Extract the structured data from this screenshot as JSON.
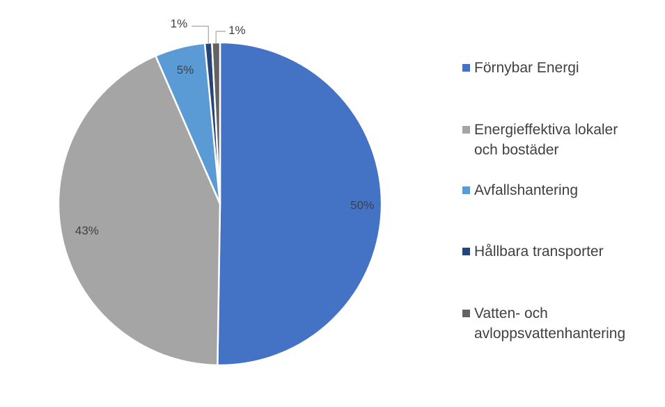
{
  "chart_data": {
    "type": "pie",
    "title": "",
    "legend_position": "right",
    "start_angle_deg": 0,
    "direction": "clockwise",
    "slices": [
      {
        "label_lines": [
          "Förnybar Energi"
        ],
        "value": 50,
        "display": "50%",
        "color": "#4472C4"
      },
      {
        "label_lines": [
          "Energieffektiva lokaler",
          "och bostäder"
        ],
        "value": 43,
        "display": "43%",
        "color": "#A5A5A5"
      },
      {
        "label_lines": [
          "Avfallshantering"
        ],
        "value": 5,
        "display": "5%",
        "color": "#5B9BD5"
      },
      {
        "label_lines": [
          "Hållbara transporter"
        ],
        "value": 0.7,
        "display": "1%",
        "color": "#264478"
      },
      {
        "label_lines": [
          "Vatten- och",
          "avloppsvattenhantering"
        ],
        "value": 0.8,
        "display": "1%",
        "color": "#636363"
      }
    ]
  }
}
